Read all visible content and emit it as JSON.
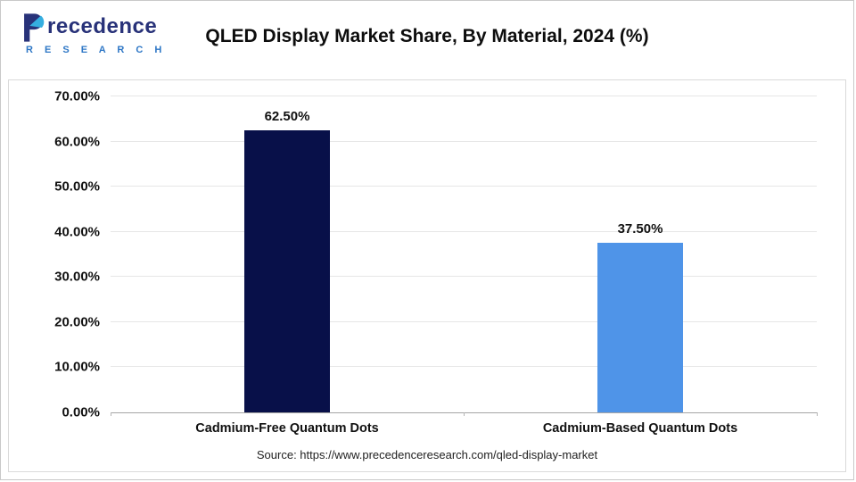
{
  "header": {
    "logo": {
      "brand_rest": "recedence",
      "brand_sub": "R E S E A R C H"
    },
    "title": "QLED Display Market Share, By Material, 2024 (%)"
  },
  "chart_data": {
    "type": "bar",
    "title": "QLED Display Market Share, By Material, 2024 (%)",
    "categories": [
      "Cadmium-Free Quantum Dots",
      "Cadmium-Based Quantum Dots"
    ],
    "values": [
      62.5,
      37.5
    ],
    "value_labels": [
      "62.50%",
      "37.50%"
    ],
    "bar_colors": [
      "#081049",
      "#4f94e8"
    ],
    "xlabel": "",
    "ylabel": "",
    "ylim": [
      0,
      70
    ],
    "ytick_interval": 10,
    "ytick_labels": [
      "0.00%",
      "10.00%",
      "20.00%",
      "30.00%",
      "40.00%",
      "50.00%",
      "60.00%",
      "70.00%"
    ],
    "grid": true,
    "legend_position": "none"
  },
  "footer": {
    "source": "Source: https://www.precedenceresearch.com/qled-display-market"
  }
}
